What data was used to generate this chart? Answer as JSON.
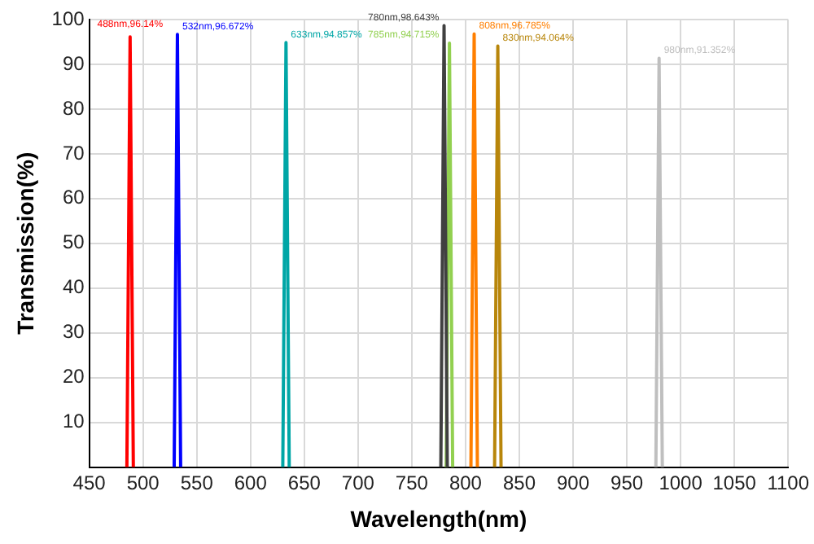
{
  "chart_data": {
    "type": "line",
    "xlabel": "Wavelength(nm)",
    "ylabel": "Transmission(%)",
    "xlim": [
      450,
      1100
    ],
    "xticks": [
      450,
      500,
      550,
      600,
      650,
      700,
      750,
      800,
      850,
      900,
      950,
      1000,
      1050,
      1100
    ],
    "ylim": [
      0,
      100
    ],
    "yticks": [
      10,
      20,
      30,
      40,
      50,
      60,
      70,
      80,
      90,
      100
    ],
    "grid": true,
    "marker": "none",
    "line_style": "solid",
    "series": [
      {
        "color": "#ff0000",
        "x": [
          485,
          488,
          491
        ],
        "values": [
          0,
          96.14,
          0
        ]
      },
      {
        "color": "#0000ff",
        "x": [
          529,
          532,
          535
        ],
        "values": [
          0,
          96.672,
          0
        ]
      },
      {
        "color": "#00a6a6",
        "x": [
          630,
          633,
          636
        ],
        "values": [
          0,
          94.857,
          0
        ]
      },
      {
        "color": "#404040",
        "x": [
          777,
          780,
          783
        ],
        "values": [
          0,
          98.643,
          0
        ]
      },
      {
        "color": "#92d050",
        "x": [
          782,
          785,
          788
        ],
        "values": [
          0,
          94.715,
          0
        ]
      },
      {
        "color": "#ff7f00",
        "x": [
          805,
          808,
          811
        ],
        "values": [
          0,
          96.785,
          0
        ]
      },
      {
        "color": "#b8860b",
        "x": [
          827,
          830,
          833
        ],
        "values": [
          0,
          94.064,
          0
        ]
      },
      {
        "color": "#bfbfbf",
        "x": [
          977,
          980,
          983
        ],
        "values": [
          0,
          91.352,
          0
        ]
      }
    ],
    "annotations": [
      {
        "text": "488nm,96.14%",
        "x": 488,
        "y": 96.14
      },
      {
        "text": "532nm,96.672%",
        "x": 532,
        "y": 96.672
      },
      {
        "text": "633nm,94.857%",
        "x": 633,
        "y": 94.857
      },
      {
        "text": "780nm,98.643%",
        "x": 780,
        "y": 98.643
      },
      {
        "text": "785nm,94.715%",
        "x": 785,
        "y": 94.715
      },
      {
        "text": "808nm,96.785%",
        "x": 808,
        "y": 96.785
      },
      {
        "text": "830nm,94.064%",
        "x": 830,
        "y": 94.064
      },
      {
        "text": "980nm,91.352%",
        "x": 980,
        "y": 91.352
      }
    ]
  }
}
